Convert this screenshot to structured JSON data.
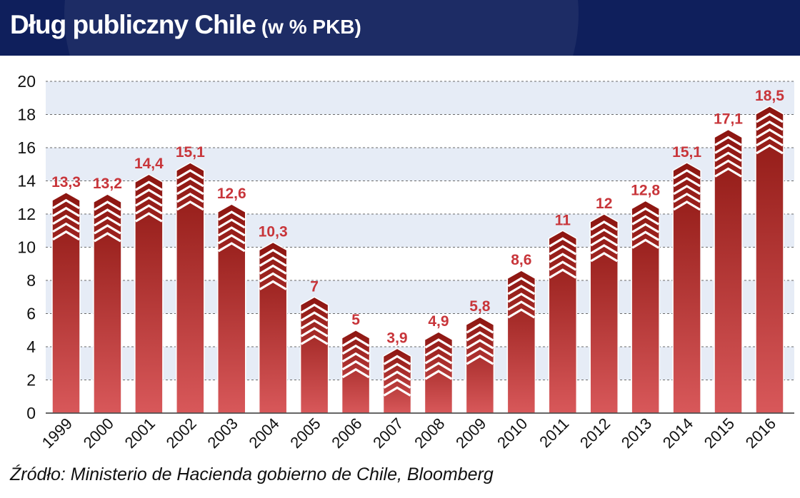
{
  "header": {
    "title": "Dług publiczny Chile",
    "subtitle": "(w % PKB)"
  },
  "source": "Źródło: Ministerio de Hacienda gobierno de Chile, Bloomberg",
  "colors": {
    "header_bg": "#0f1f5c",
    "bar_dark": "#8c1510",
    "bar_light": "#d8585a",
    "label": "#c8353a",
    "band": "#e6ecf6"
  },
  "chart_data": {
    "type": "bar",
    "title": "Dług publiczny Chile",
    "subtitle": "(w % PKB)",
    "categories": [
      "1999",
      "2000",
      "2001",
      "2002",
      "2003",
      "2004",
      "2005",
      "2006",
      "2007",
      "2008",
      "2009",
      "2010",
      "2011",
      "2012",
      "2013",
      "2014",
      "2015",
      "2016"
    ],
    "values": [
      13.3,
      13.2,
      14.4,
      15.1,
      12.6,
      10.3,
      7,
      5,
      3.9,
      4.9,
      5.8,
      8.6,
      11,
      12,
      12.8,
      15.1,
      17.1,
      18.5
    ],
    "data_labels": [
      "13,3",
      "13,2",
      "14,4",
      "15,1",
      "12,6",
      "10,3",
      "7",
      "5",
      "3,9",
      "4,9",
      "5,8",
      "8,6",
      "11",
      "12",
      "12,8",
      "15,1",
      "17,1",
      "18,5"
    ],
    "ylim": [
      0,
      20
    ],
    "yticks": [
      "0",
      "2",
      "4",
      "6",
      "8",
      "10",
      "12",
      "14",
      "16",
      "18",
      "20"
    ],
    "grid": true,
    "xlabel": "",
    "ylabel": ""
  }
}
